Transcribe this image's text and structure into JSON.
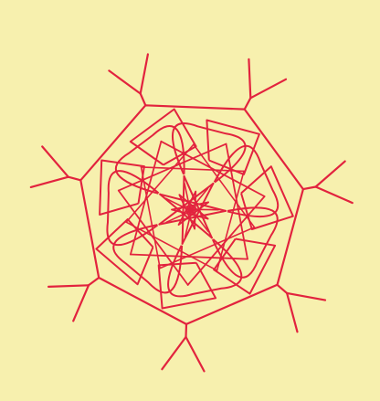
{
  "colors": {
    "background": "#f7f0ae",
    "stroke": "#e2233e"
  },
  "figure": {
    "kind": "rotational-line-art",
    "symmetry": 7
  }
}
